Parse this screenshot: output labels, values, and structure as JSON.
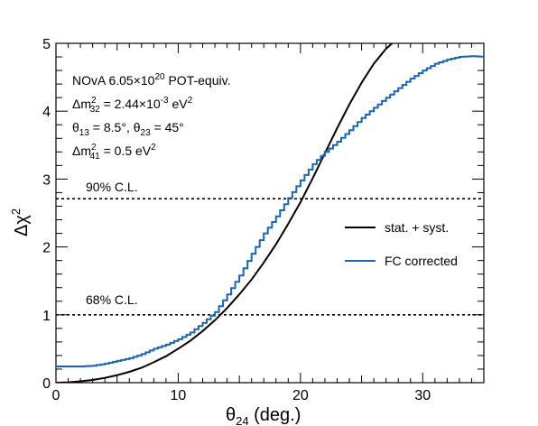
{
  "chart_data": {
    "type": "line",
    "xlabel": "θ24 (deg.)",
    "ylabel": "Δχ2",
    "xlim": [
      0,
      35
    ],
    "ylim": [
      0,
      5
    ],
    "x_ticks": [
      "0",
      "10",
      "20",
      "30"
    ],
    "y_ticks": [
      "0",
      "1",
      "2",
      "3",
      "4",
      "5"
    ],
    "grid": false,
    "legend_position": "right",
    "annotations": {
      "line1": {
        "pre": "NOvA 6.05×10",
        "sup": "20",
        "post": " POT-equiv."
      },
      "line2": {
        "pre": "Δm",
        "sub": "32",
        "sup": "2",
        "post": " = 2.44×10",
        "sup2": "-3",
        "post2": " eV",
        "sup3": "2"
      },
      "line3": {
        "a": "θ",
        "a_sub": "13",
        "b": " = 8.5°, θ",
        "b_sub": "23",
        "c": " = 45°"
      },
      "line4": {
        "pre": "Δm",
        "sub": "41",
        "sup": "2",
        "post": " = 0.5 eV",
        "sup2": "2"
      }
    },
    "confidence_levels": [
      {
        "label": "90% C.L.",
        "value": 2.71
      },
      {
        "label": "68% C.L.",
        "value": 1.0
      }
    ],
    "series": [
      {
        "name": "stat. + syst.",
        "color": "#000000",
        "x": [
          0,
          1,
          2,
          3,
          4,
          5,
          6,
          7,
          8,
          9,
          10,
          11,
          12,
          13,
          14,
          15,
          16,
          17,
          18,
          19,
          20,
          21,
          22,
          23,
          24,
          25,
          26,
          27,
          27.5
        ],
        "y": [
          0,
          0.005,
          0.02,
          0.04,
          0.07,
          0.11,
          0.16,
          0.22,
          0.3,
          0.39,
          0.5,
          0.62,
          0.76,
          0.92,
          1.1,
          1.3,
          1.52,
          1.77,
          2.04,
          2.34,
          2.66,
          3.01,
          3.38,
          3.75,
          4.1,
          4.42,
          4.7,
          4.92,
          5.0
        ]
      },
      {
        "name": "FC corrected",
        "color": "#1a64b4",
        "x": [
          0,
          1,
          2,
          3,
          4,
          5,
          6,
          7,
          8,
          9,
          10,
          11,
          12,
          13,
          14,
          15,
          16,
          17,
          18,
          19,
          20,
          21,
          22,
          23,
          24,
          25,
          26,
          27,
          28,
          29,
          30,
          31,
          32,
          33,
          34,
          35
        ],
        "y": [
          0.24,
          0.24,
          0.24,
          0.25,
          0.28,
          0.32,
          0.36,
          0.42,
          0.5,
          0.56,
          0.64,
          0.74,
          0.88,
          1.04,
          1.3,
          1.58,
          1.9,
          2.2,
          2.45,
          2.72,
          2.98,
          3.22,
          3.4,
          3.55,
          3.72,
          3.9,
          4.05,
          4.2,
          4.34,
          4.48,
          4.6,
          4.7,
          4.76,
          4.8,
          4.81,
          4.8
        ]
      }
    ]
  }
}
